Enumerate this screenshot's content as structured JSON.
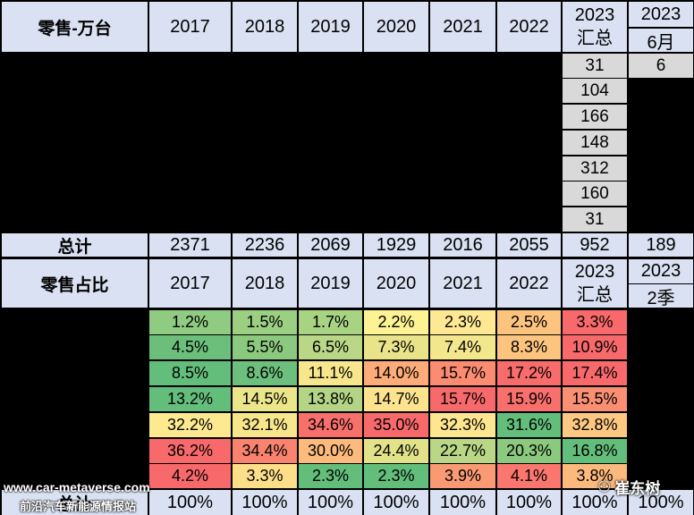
{
  "top": {
    "title": "零售-万台",
    "years": [
      "2017",
      "2018",
      "2019",
      "2020",
      "2021",
      "2022"
    ],
    "col_2023": [
      "2023",
      "汇总"
    ],
    "col_month": [
      "2023",
      "6月"
    ],
    "rows_2023": [
      "31",
      "104",
      "166",
      "148",
      "312",
      "160",
      "31"
    ],
    "month_value": "6"
  },
  "total": {
    "label": "总计",
    "values": [
      "2371",
      "2236",
      "2069",
      "1929",
      "2016",
      "2055",
      "952",
      "189"
    ]
  },
  "bottom": {
    "title": "零售占比",
    "years": [
      "2017",
      "2018",
      "2019",
      "2020",
      "2021",
      "2022"
    ],
    "col_2023": [
      "2023",
      "汇总"
    ],
    "col_q": [
      "2023",
      "2季"
    ],
    "rows": [
      {
        "values": [
          "1.2%",
          "1.5%",
          "1.7%",
          "2.2%",
          "2.3%",
          "2.5%",
          "3.3%"
        ],
        "colors": [
          "#8fcb80",
          "#9bcf81",
          "#a7d383",
          "#fdf294",
          "#fee893",
          "#fcc47f",
          "#f8696b"
        ]
      },
      {
        "values": [
          "4.5%",
          "5.5%",
          "6.5%",
          "7.3%",
          "7.4%",
          "8.3%",
          "10.9%"
        ],
        "colors": [
          "#6bbf7b",
          "#8bc97e",
          "#b9d786",
          "#e9e489",
          "#f2e78c",
          "#fcc47f",
          "#f8696b"
        ]
      },
      {
        "values": [
          "8.5%",
          "8.6%",
          "11.1%",
          "14.0%",
          "15.7%",
          "17.2%",
          "17.4%"
        ],
        "colors": [
          "#63be7b",
          "#6cbf7c",
          "#f7e68c",
          "#fcab79",
          "#fb8c72",
          "#f86c6b",
          "#f8696b"
        ]
      },
      {
        "values": [
          "13.2%",
          "14.5%",
          "13.8%",
          "14.7%",
          "15.7%",
          "15.9%",
          "15.5%"
        ],
        "colors": [
          "#63be7b",
          "#ece68a",
          "#b3d585",
          "#fee38f",
          "#f8696b",
          "#f96f6c",
          "#fb8f73"
        ]
      },
      {
        "values": [
          "32.2%",
          "32.1%",
          "34.6%",
          "35.0%",
          "32.3%",
          "31.6%",
          "32.8%"
        ],
        "colors": [
          "#fde98f",
          "#f7e68c",
          "#f8706c",
          "#f8696b",
          "#fde68f",
          "#63be7b",
          "#fdc881"
        ]
      },
      {
        "values": [
          "36.2%",
          "34.4%",
          "30.0%",
          "24.4%",
          "22.7%",
          "20.3%",
          "16.8%"
        ],
        "colors": [
          "#f8696b",
          "#f9836f",
          "#fcbb7d",
          "#e2e389",
          "#b9d786",
          "#8bc97e",
          "#63be7b"
        ]
      },
      {
        "values": [
          "4.2%",
          "3.3%",
          "2.3%",
          "2.3%",
          "3.9%",
          "4.1%",
          "3.8%"
        ],
        "colors": [
          "#f8696b",
          "#fdde89",
          "#63be7b",
          "#63be7b",
          "#fa9a75",
          "#f9776e",
          "#fcb97d"
        ]
      }
    ],
    "total_values": [
      "100%",
      "100%",
      "100%",
      "100%",
      "100%",
      "100%",
      "100%",
      "100%"
    ]
  },
  "watermarks": {
    "site": "www.car-metaverse.com",
    "station": "前沿汽车新能源情报站",
    "brand": "崔东树"
  }
}
